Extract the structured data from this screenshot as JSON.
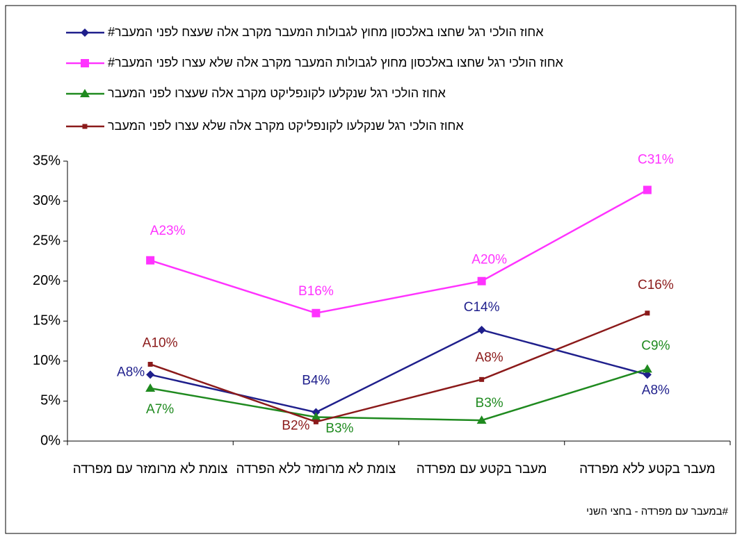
{
  "chart_data": {
    "type": "line",
    "categories": [
      "צומת לא מרומזר עם מפרדה",
      "צומת לא מרומזר ללא הפרדה",
      "מעבר בקטע עם מפרדה",
      "מעבר בקטע ללא מפרדה"
    ],
    "series": [
      {
        "name": "אחוז הולכי רגל שחצו באלכסון מחוץ לגבולות המעבר מקרב אלה שעצח לפני המעבר#",
        "color": "#1f1f8c",
        "values": [
          8.3,
          3.6,
          13.9,
          8.3
        ],
        "value_labels": [
          "A8%",
          "B4%",
          "C14%",
          "A8%"
        ]
      },
      {
        "name": "אחוז הולכי רגל שחצו באלכסון מחוץ לגבולות המעבר מקרב אלה שלא עצרו לפני המעבר#",
        "color": "#ff33ff",
        "values": [
          22.6,
          16,
          20,
          31.4
        ],
        "value_labels": [
          "A23%",
          "B16%",
          "A20%",
          "C31%"
        ]
      },
      {
        "name": "אחוז הולכי רגל שנקלעו לקונפליקט מקרב אלה שעצרו לפני המעבר",
        "color": "#1f8a1f",
        "values": [
          6.6,
          3.0,
          2.6,
          9.0
        ],
        "value_labels": [
          "A7%",
          "B3%",
          "B3%",
          "C9%"
        ]
      },
      {
        "name": "אחוז הולכי רגל שנקלעו לקונפליקט מקרב אלה שלא עצרו לפני המעבר",
        "color": "#8b1a1a",
        "values": [
          9.6,
          2.4,
          7.7,
          16.0
        ],
        "value_labels": [
          "A10%",
          "B2%",
          "A8%",
          "C16%"
        ]
      }
    ],
    "ylim": [
      0,
      35
    ],
    "yticks": [
      {
        "value": 0,
        "label": "0%"
      },
      {
        "value": 5,
        "label": "5%"
      },
      {
        "value": 10,
        "label": "10%"
      },
      {
        "value": 15,
        "label": "15%"
      },
      {
        "value": 20,
        "label": "20%"
      },
      {
        "value": 25,
        "label": "25%"
      },
      {
        "value": 30,
        "label": "30%"
      },
      {
        "value": 35,
        "label": "35%"
      }
    ],
    "footnote": "#במעבר עם מפרדה - בחצי השני"
  }
}
